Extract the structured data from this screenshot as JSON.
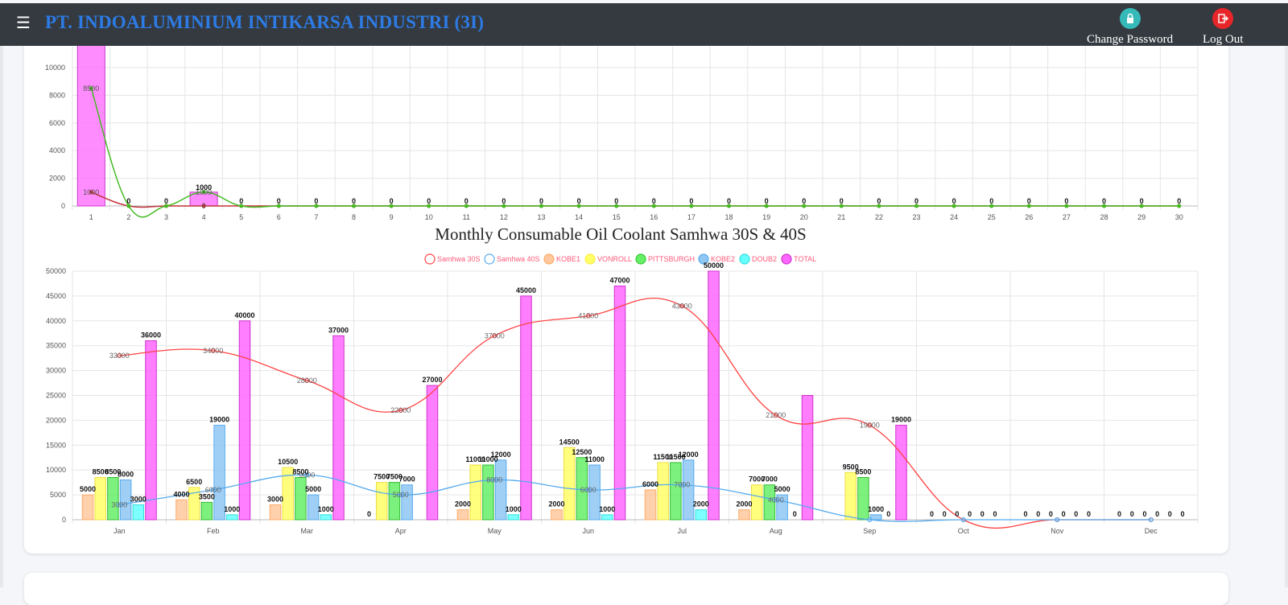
{
  "navbar": {
    "menu_icon": "hamburger-icon",
    "company_name": "PT. INDOALUMINIUM INTIKARSA INDUSTRI (3I)",
    "change_password_label": "Change Password",
    "change_password_icon": "lock-icon",
    "change_password_color": "#35b9b9",
    "logout_label": "Log Out",
    "logout_icon": "logout-icon",
    "logout_color": "#e8262a"
  },
  "chart_data": [
    {
      "type": "bar",
      "title": "",
      "categories": [
        "1",
        "2",
        "3",
        "4",
        "5",
        "6",
        "7",
        "8",
        "9",
        "10",
        "11",
        "12",
        "13",
        "14",
        "15",
        "16",
        "17",
        "18",
        "19",
        "20",
        "21",
        "22",
        "23",
        "24",
        "25",
        "26",
        "27",
        "28",
        "29",
        "30"
      ],
      "yticks": [
        "0",
        "2000",
        "4000",
        "6000",
        "8000",
        "10000"
      ],
      "ylim": [
        0,
        11500
      ],
      "grid": true,
      "series": [
        {
          "type": "bar",
          "color": "#ff66ff",
          "values": [
            12000,
            0,
            0,
            1000,
            0,
            0,
            0,
            0,
            0,
            0,
            0,
            0,
            0,
            0,
            0,
            0,
            0,
            0,
            0,
            0,
            0,
            0,
            0,
            0,
            0,
            0,
            0,
            0,
            0,
            0
          ],
          "labels": [
            "",
            "0",
            "0",
            "1000",
            "0",
            "0",
            "0",
            "0",
            "0",
            "0",
            "0",
            "0",
            "0",
            "0",
            "0",
            "0",
            "0",
            "0",
            "0",
            "0",
            "0",
            "0",
            "0",
            "0",
            "0",
            "0",
            "0",
            "0",
            "0",
            "0"
          ]
        },
        {
          "type": "line",
          "color": "#44bb22",
          "values": [
            8500,
            0,
            0,
            1000,
            0,
            0,
            0,
            0,
            0,
            0,
            0,
            0,
            0,
            0,
            0,
            0,
            0,
            0,
            0,
            0,
            0,
            0,
            0,
            0,
            0,
            0,
            0,
            0,
            0,
            0
          ],
          "labels": [
            "8500",
            "",
            "",
            "1000",
            "",
            "",
            "",
            "",
            "",
            "",
            "",
            "",
            "",
            "",
            "",
            "",
            "",
            "",
            "",
            "",
            "",
            "",
            "",
            "",
            "",
            "",
            "",
            "",
            "",
            ""
          ]
        },
        {
          "type": "line",
          "color": "#c0333a",
          "values": [
            1000,
            0,
            0,
            0,
            0,
            0,
            0,
            0,
            0,
            0,
            0,
            0,
            0,
            0,
            0,
            0,
            0,
            0,
            0,
            0,
            0,
            0,
            0,
            0,
            0,
            0,
            0,
            0,
            0,
            0
          ],
          "labels": [
            "1000",
            "",
            "",
            "0",
            "",
            "",
            "",
            "",
            "",
            "",
            "",
            "",
            "",
            "",
            "",
            "",
            "",
            "",
            "",
            "",
            "",
            "",
            "",
            "",
            "",
            "",
            "",
            "",
            "",
            ""
          ]
        }
      ]
    },
    {
      "type": "bar",
      "title": "Monthly Consumable Oil Coolant Samhwa 30S & 40S",
      "categories": [
        "Jan",
        "Feb",
        "Mar",
        "Apr",
        "May",
        "Jun",
        "Jul",
        "Aug",
        "Sep",
        "Oct",
        "Nov",
        "Dec"
      ],
      "yticks": [
        "0",
        "5000",
        "10000",
        "15000",
        "20000",
        "25000",
        "30000",
        "35000",
        "40000",
        "45000",
        "50000"
      ],
      "ylim": [
        0,
        50000
      ],
      "grid": true,
      "legend_position": "top",
      "legend": [
        {
          "name": "Samhwa 30S",
          "color": "#ff4444",
          "fill": "none"
        },
        {
          "name": "Samhwa 40S",
          "color": "#55aaee",
          "fill": "none"
        },
        {
          "name": "KOBE1",
          "color": "#ffaa66",
          "fill": "#ffc89e"
        },
        {
          "name": "VONROLL",
          "color": "#ffee44",
          "fill": "#ffff66"
        },
        {
          "name": "PITTSBURGH",
          "color": "#33cc33",
          "fill": "#66ee66"
        },
        {
          "name": "KOBE2",
          "color": "#55aaee",
          "fill": "#8fc7f3"
        },
        {
          "name": "DOUB2",
          "color": "#33dddd",
          "fill": "#66ffff"
        },
        {
          "name": "TOTAL",
          "color": "#cc33cc",
          "fill": "#ff66ff"
        }
      ],
      "bar_series": [
        {
          "name": "KOBE1",
          "fill": "#ffc89e",
          "stroke": "#ffaa66",
          "values": [
            5000,
            4000,
            3000,
            0,
            2000,
            2000,
            6000,
            2000,
            0,
            0,
            0,
            0
          ]
        },
        {
          "name": "VONROLL",
          "fill": "#ffff66",
          "stroke": "#eedd44",
          "values": [
            8500,
            6500,
            10500,
            7500,
            11000,
            14500,
            11500,
            7000,
            9500,
            0,
            0,
            0
          ]
        },
        {
          "name": "PITTSBURGH",
          "fill": "#66ee66",
          "stroke": "#33bb33",
          "values": [
            8500,
            3500,
            8500,
            7500,
            11000,
            12500,
            11500,
            7000,
            8500,
            0,
            0,
            0
          ]
        },
        {
          "name": "KOBE2",
          "fill": "#8fc7f3",
          "stroke": "#55aaee",
          "values": [
            8000,
            19000,
            5000,
            7000,
            12000,
            11000,
            12000,
            5000,
            1000,
            0,
            0,
            0
          ]
        },
        {
          "name": "DOUB2",
          "fill": "#66ffff",
          "stroke": "#33dddd",
          "values": [
            3000,
            1000,
            1000,
            0,
            1000,
            1000,
            2000,
            0,
            0,
            0,
            0,
            0
          ]
        },
        {
          "name": "TOTAL",
          "fill": "#ff66ff",
          "stroke": "#cc33cc",
          "values": [
            36000,
            40000,
            37000,
            27000,
            45000,
            47000,
            50000,
            25000,
            19000,
            0,
            0,
            0
          ]
        }
      ],
      "bar_labels": [
        [
          "5000",
          "8500",
          "8500",
          "8000",
          "3000",
          "36000"
        ],
        [
          "4000",
          "6500",
          "3500",
          "19000",
          "1000",
          "40000"
        ],
        [
          "3000",
          "10500",
          "8500",
          "5000",
          "1000",
          "37000"
        ],
        [
          "0",
          "7500",
          "7500",
          "7000",
          "",
          "27000"
        ],
        [
          "2000",
          "11000",
          "11000",
          "12000",
          "1000",
          "45000"
        ],
        [
          "2000",
          "14500",
          "12500",
          "11000",
          "1000",
          "47000"
        ],
        [
          "6000",
          "11500",
          "11500",
          "12000",
          "2000",
          "50000"
        ],
        [
          "2000",
          "7000",
          "7000",
          "5000",
          "0",
          ""
        ],
        [
          "",
          "9500",
          "8500",
          "1000",
          "0",
          "19000"
        ],
        [
          "0",
          "0",
          "0",
          "0",
          "0",
          "0"
        ],
        [
          "0",
          "0",
          "0",
          "0",
          "0",
          "0"
        ],
        [
          "0",
          "0",
          "0",
          "0",
          "0",
          "0"
        ]
      ],
      "line_series": [
        {
          "name": "Samhwa 30S",
          "color": "#ff4444",
          "values": [
            33000,
            34000,
            28000,
            22000,
            37000,
            41000,
            43000,
            21000,
            19000,
            0,
            0,
            0
          ],
          "labels": [
            "33000",
            "34000",
            "28000",
            "22000",
            "37000",
            "41000",
            "43000",
            "21000",
            "19000",
            "",
            "",
            ""
          ]
        },
        {
          "name": "Samhwa 40S",
          "color": "#55aaee",
          "values": [
            3000,
            6000,
            9000,
            5000,
            8000,
            6000,
            7000,
            4000,
            0,
            0,
            0,
            0
          ],
          "labels": [
            "3000",
            "6000",
            "9000",
            "5000",
            "8000",
            "6000",
            "7000",
            "4000",
            "",
            "",
            "",
            ""
          ]
        }
      ]
    }
  ]
}
